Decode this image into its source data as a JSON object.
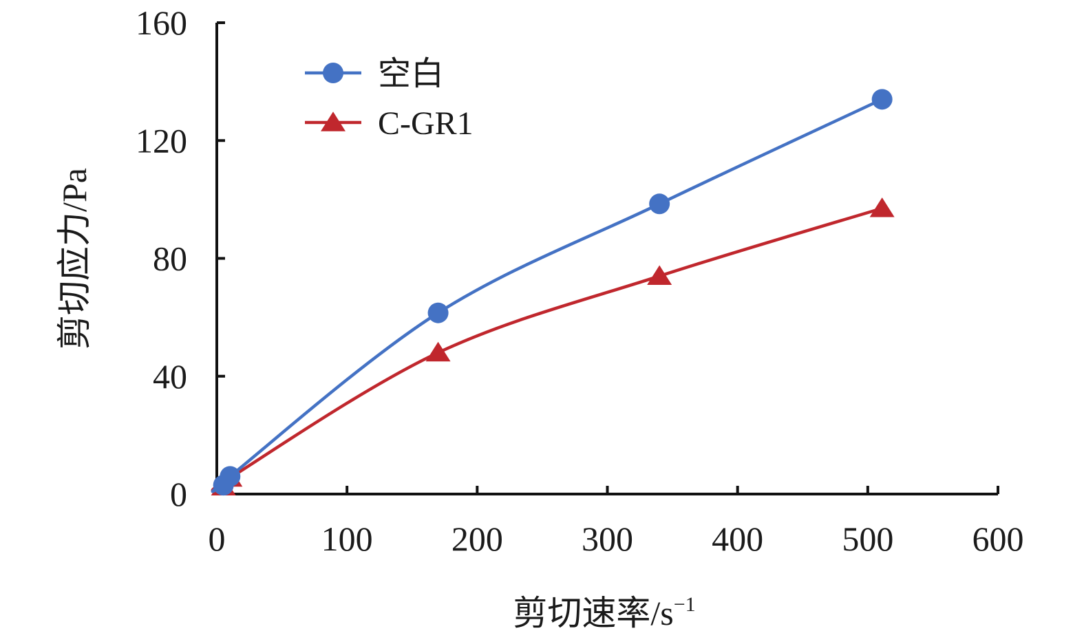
{
  "chart_data": {
    "type": "line",
    "title": "",
    "xlabel": "剪切速率/s",
    "xlabel_sup": "−1",
    "ylabel": "剪切应力/Pa",
    "xlim": [
      0,
      600
    ],
    "ylim": [
      0,
      160
    ],
    "xticks": [
      0,
      100,
      200,
      300,
      400,
      500,
      600
    ],
    "yticks": [
      0,
      40,
      80,
      120,
      160
    ],
    "grid": false,
    "legend_position": "top-left",
    "series": [
      {
        "name": "空白",
        "color": "#4472C4",
        "marker": "circle",
        "x": [
          5.1,
          10.2,
          170,
          340,
          511
        ],
        "y": [
          3,
          6,
          61.5,
          98.5,
          134
        ]
      },
      {
        "name": "C-GR1",
        "color": "#C0272D",
        "marker": "triangle",
        "x": [
          5.1,
          10.2,
          170,
          340,
          511
        ],
        "y": [
          2.5,
          5.5,
          48,
          74,
          97
        ]
      }
    ]
  }
}
